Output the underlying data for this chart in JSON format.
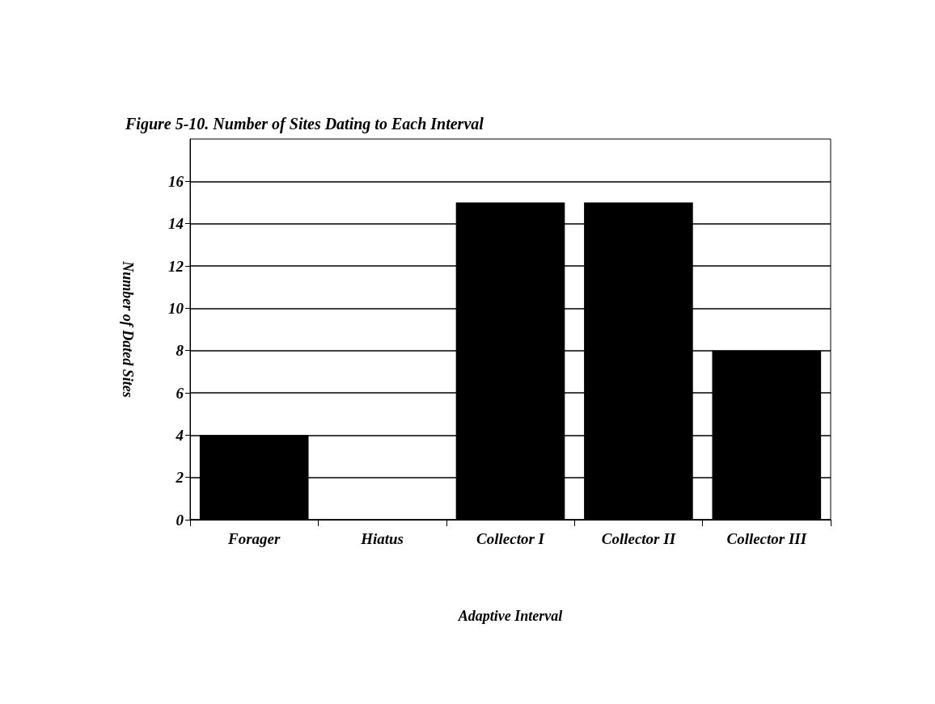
{
  "chart_data": {
    "type": "bar",
    "title": "Figure 5-10. Number of Sites Dating to Each Interval",
    "xlabel": "Adaptive Interval",
    "ylabel": "Number of Dated Sites",
    "categories": [
      "Forager",
      "Hiatus",
      "Collector I",
      "Collector II",
      "Collector III"
    ],
    "values": [
      4,
      0,
      15,
      15,
      8
    ],
    "color": "#000000",
    "ylim": [
      0,
      18
    ],
    "yticks": [
      0,
      2,
      4,
      6,
      8,
      10,
      12,
      14,
      16
    ],
    "grid": "y"
  }
}
